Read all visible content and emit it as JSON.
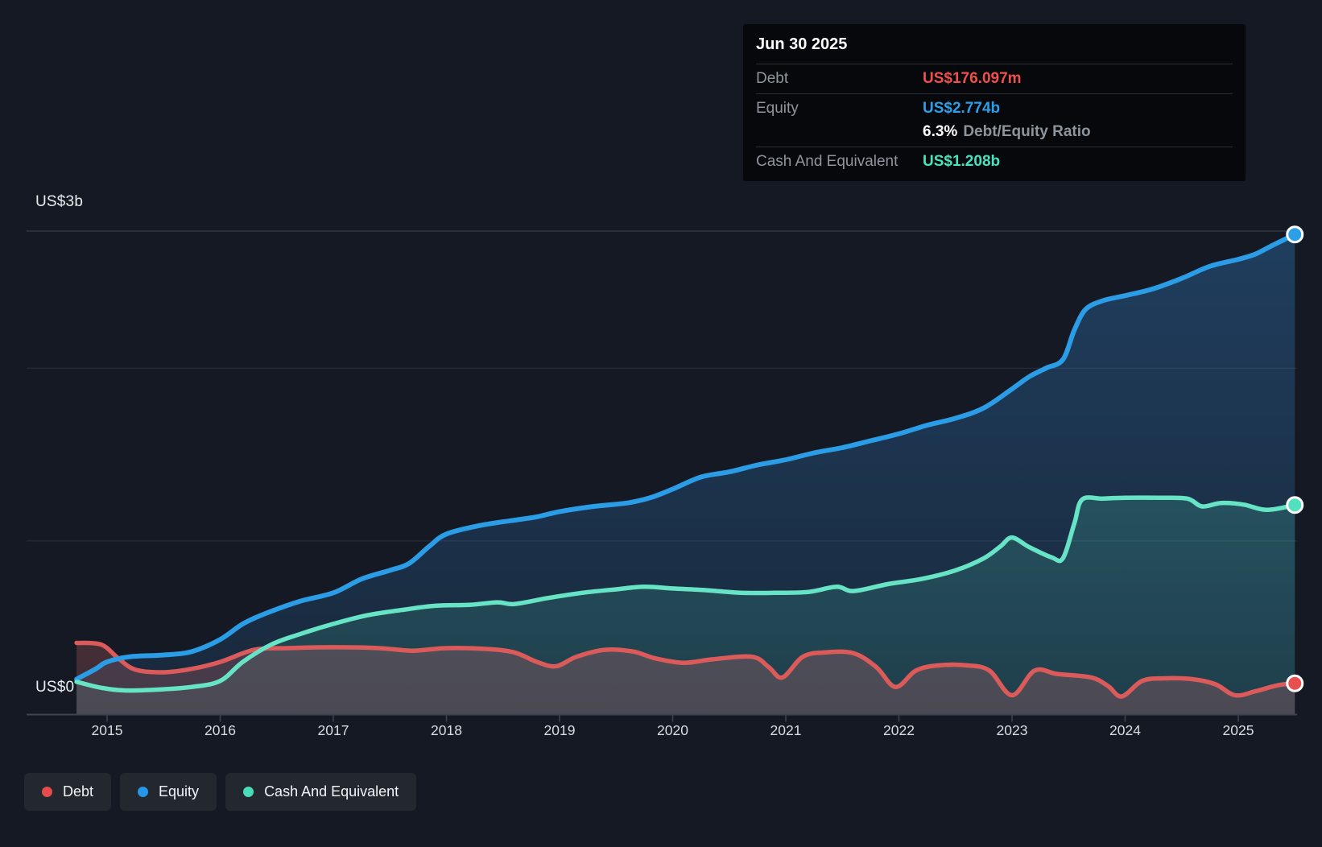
{
  "y_axis": {
    "top_label": "US$3b",
    "zero_label": "US$0"
  },
  "x_axis": {
    "years": [
      "2015",
      "2016",
      "2017",
      "2018",
      "2019",
      "2020",
      "2021",
      "2022",
      "2023",
      "2024",
      "2025"
    ]
  },
  "tooltip": {
    "date": "Jun 30 2025",
    "debt_label": "Debt",
    "debt_value": "US$176.097m",
    "equity_label": "Equity",
    "equity_value": "US$2.774b",
    "ratio_value": "6.3%",
    "ratio_label": "Debt/Equity Ratio",
    "cash_label": "Cash And Equivalent",
    "cash_value": "US$1.208b"
  },
  "legend": {
    "debt": {
      "label": "Debt",
      "color": "#e64c4c"
    },
    "equity": {
      "label": "Equity",
      "color": "#2596e8"
    },
    "cash": {
      "label": "Cash And Equivalent",
      "color": "#4adbb9"
    }
  },
  "colors": {
    "debt_line": "#db5a5a",
    "debt_dot": "#e84f4f",
    "debt_text": "#f0504a",
    "equity_line": "#2b9ce6",
    "equity_dot": "#2d9fe8",
    "equity_text": "#2d9fe8",
    "cash_line": "#67e3c6",
    "cash_dot": "#52e0be",
    "cash_text": "#47e3bd",
    "gridline": "rgba(255,255,255,0.10)",
    "gridline_top": "rgba(255,255,255,0.16)",
    "axis": "#3d4450"
  },
  "chart_data": {
    "type": "area",
    "unit": "US$ billions",
    "x_range_years": [
      2014.73,
      2025.5
    ],
    "ylim": [
      0,
      3
    ],
    "y_gridlines_billions": [
      1,
      2
    ],
    "x_tick_years": [
      2015,
      2016,
      2017,
      2018,
      2019,
      2020,
      2021,
      2022,
      2023,
      2024,
      2025
    ],
    "legend_position": "bottom-left",
    "series": [
      {
        "name": "Equity",
        "points": [
          [
            2014.73,
            0.2
          ],
          [
            2014.9,
            0.26
          ],
          [
            2015.0,
            0.3
          ],
          [
            2015.2,
            0.33
          ],
          [
            2015.5,
            0.34
          ],
          [
            2015.75,
            0.36
          ],
          [
            2016.0,
            0.43
          ],
          [
            2016.2,
            0.52
          ],
          [
            2016.4,
            0.58
          ],
          [
            2016.7,
            0.65
          ],
          [
            2017.0,
            0.7
          ],
          [
            2017.25,
            0.78
          ],
          [
            2017.5,
            0.83
          ],
          [
            2017.67,
            0.87
          ],
          [
            2017.85,
            0.97
          ],
          [
            2018.0,
            1.04
          ],
          [
            2018.3,
            1.09
          ],
          [
            2018.6,
            1.12
          ],
          [
            2018.8,
            1.14
          ],
          [
            2019.0,
            1.17
          ],
          [
            2019.3,
            1.2
          ],
          [
            2019.6,
            1.22
          ],
          [
            2019.8,
            1.25
          ],
          [
            2020.0,
            1.3
          ],
          [
            2020.25,
            1.37
          ],
          [
            2020.5,
            1.4
          ],
          [
            2020.75,
            1.44
          ],
          [
            2021.0,
            1.47
          ],
          [
            2021.25,
            1.51
          ],
          [
            2021.5,
            1.54
          ],
          [
            2021.75,
            1.58
          ],
          [
            2022.0,
            1.62
          ],
          [
            2022.25,
            1.67
          ],
          [
            2022.5,
            1.71
          ],
          [
            2022.75,
            1.77
          ],
          [
            2023.0,
            1.88
          ],
          [
            2023.15,
            1.95
          ],
          [
            2023.3,
            2.0
          ],
          [
            2023.45,
            2.05
          ],
          [
            2023.55,
            2.22
          ],
          [
            2023.65,
            2.34
          ],
          [
            2023.8,
            2.39
          ],
          [
            2024.0,
            2.42
          ],
          [
            2024.25,
            2.46
          ],
          [
            2024.5,
            2.52
          ],
          [
            2024.75,
            2.59
          ],
          [
            2025.0,
            2.63
          ],
          [
            2025.15,
            2.66
          ],
          [
            2025.3,
            2.71
          ],
          [
            2025.5,
            2.774
          ]
        ],
        "end_value_label": "US$2.774b"
      },
      {
        "name": "Cash And Equivalent",
        "points": [
          [
            2014.73,
            0.185
          ],
          [
            2014.95,
            0.15
          ],
          [
            2015.15,
            0.135
          ],
          [
            2015.45,
            0.14
          ],
          [
            2015.75,
            0.155
          ],
          [
            2016.0,
            0.19
          ],
          [
            2016.2,
            0.3
          ],
          [
            2016.45,
            0.4
          ],
          [
            2016.7,
            0.46
          ],
          [
            2017.0,
            0.52
          ],
          [
            2017.3,
            0.57
          ],
          [
            2017.6,
            0.6
          ],
          [
            2017.9,
            0.625
          ],
          [
            2018.2,
            0.63
          ],
          [
            2018.45,
            0.645
          ],
          [
            2018.6,
            0.635
          ],
          [
            2018.9,
            0.67
          ],
          [
            2019.2,
            0.7
          ],
          [
            2019.5,
            0.72
          ],
          [
            2019.75,
            0.735
          ],
          [
            2020.0,
            0.725
          ],
          [
            2020.3,
            0.715
          ],
          [
            2020.6,
            0.7
          ],
          [
            2020.9,
            0.7
          ],
          [
            2021.2,
            0.705
          ],
          [
            2021.45,
            0.735
          ],
          [
            2021.6,
            0.71
          ],
          [
            2021.9,
            0.75
          ],
          [
            2022.2,
            0.78
          ],
          [
            2022.5,
            0.83
          ],
          [
            2022.75,
            0.9
          ],
          [
            2022.9,
            0.97
          ],
          [
            2023.0,
            1.02
          ],
          [
            2023.15,
            0.965
          ],
          [
            2023.35,
            0.905
          ],
          [
            2023.45,
            0.9
          ],
          [
            2023.55,
            1.1
          ],
          [
            2023.62,
            1.24
          ],
          [
            2023.8,
            1.245
          ],
          [
            2024.0,
            1.25
          ],
          [
            2024.3,
            1.25
          ],
          [
            2024.55,
            1.245
          ],
          [
            2024.68,
            1.2
          ],
          [
            2024.85,
            1.22
          ],
          [
            2025.05,
            1.21
          ],
          [
            2025.25,
            1.18
          ],
          [
            2025.5,
            1.208
          ]
        ],
        "end_value_label": "US$1.208b"
      },
      {
        "name": "Debt",
        "points": [
          [
            2014.73,
            0.41
          ],
          [
            2014.95,
            0.4
          ],
          [
            2015.1,
            0.32
          ],
          [
            2015.25,
            0.255
          ],
          [
            2015.5,
            0.24
          ],
          [
            2015.75,
            0.26
          ],
          [
            2016.0,
            0.3
          ],
          [
            2016.3,
            0.37
          ],
          [
            2016.6,
            0.38
          ],
          [
            2017.0,
            0.385
          ],
          [
            2017.4,
            0.38
          ],
          [
            2017.7,
            0.365
          ],
          [
            2018.0,
            0.38
          ],
          [
            2018.35,
            0.375
          ],
          [
            2018.6,
            0.355
          ],
          [
            2018.8,
            0.3
          ],
          [
            2018.97,
            0.275
          ],
          [
            2019.15,
            0.33
          ],
          [
            2019.4,
            0.37
          ],
          [
            2019.65,
            0.36
          ],
          [
            2019.85,
            0.32
          ],
          [
            2020.1,
            0.295
          ],
          [
            2020.35,
            0.315
          ],
          [
            2020.7,
            0.33
          ],
          [
            2020.85,
            0.27
          ],
          [
            2020.97,
            0.21
          ],
          [
            2021.15,
            0.33
          ],
          [
            2021.35,
            0.355
          ],
          [
            2021.6,
            0.35
          ],
          [
            2021.8,
            0.27
          ],
          [
            2021.97,
            0.155
          ],
          [
            2022.15,
            0.25
          ],
          [
            2022.35,
            0.28
          ],
          [
            2022.6,
            0.28
          ],
          [
            2022.8,
            0.25
          ],
          [
            2023.0,
            0.107
          ],
          [
            2023.2,
            0.25
          ],
          [
            2023.4,
            0.23
          ],
          [
            2023.7,
            0.21
          ],
          [
            2023.85,
            0.16
          ],
          [
            2023.97,
            0.1
          ],
          [
            2024.15,
            0.19
          ],
          [
            2024.35,
            0.205
          ],
          [
            2024.6,
            0.2
          ],
          [
            2024.8,
            0.17
          ],
          [
            2024.97,
            0.107
          ],
          [
            2025.15,
            0.13
          ],
          [
            2025.35,
            0.165
          ],
          [
            2025.5,
            0.176
          ]
        ],
        "end_value_label": "US$176.097m"
      }
    ]
  }
}
